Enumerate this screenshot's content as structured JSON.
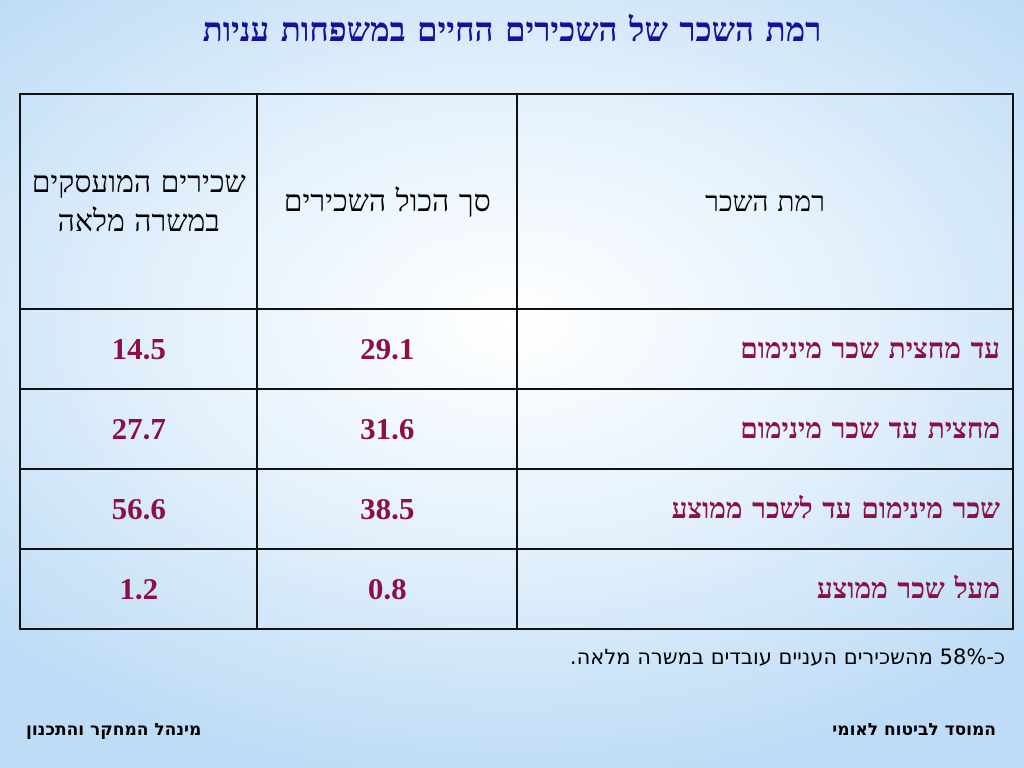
{
  "title": "רמת השכר של השכירים החיים במשפחות עניות",
  "table": {
    "headers": {
      "level": "רמת השכר",
      "all_employees": "סך הכול השכירים",
      "full_time": "שכירים המועסקים במשרה מלאה"
    },
    "rows": [
      {
        "level": "עד מחצית שכר מינימום",
        "all_employees": "29.1",
        "full_time": "14.5"
      },
      {
        "level": "מחצית עד שכר מינימום",
        "all_employees": "31.6",
        "full_time": "27.7"
      },
      {
        "level": "שכר מינימום עד לשכר ממוצע",
        "all_employees": "38.5",
        "full_time": "56.6"
      },
      {
        "level": "מעל שכר ממוצע",
        "all_employees": "0.8",
        "full_time": "1.2"
      }
    ]
  },
  "note": "כ-58% מהשכירים העניים עובדים במשרה מלאה.",
  "footer": {
    "org": "המוסד לביטוח לאומי",
    "dept": "מינהל המחקר והתכנון"
  },
  "colors": {
    "title": "#1a0f99",
    "cell_text": "#8c1046",
    "background_center": "#ffffff",
    "background_edge": "#bedcf6"
  }
}
